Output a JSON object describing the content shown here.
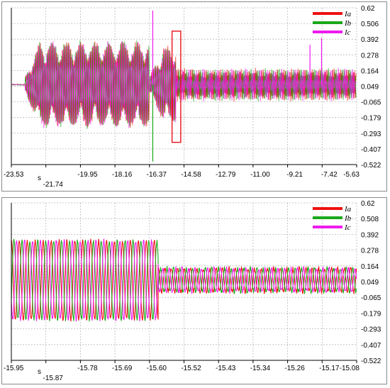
{
  "chart_data": [
    {
      "type": "line",
      "title": "",
      "xlabel": "s",
      "ylabel": "",
      "x_ticks": [
        "-23.53",
        "-21.74",
        "-19.95",
        "-18.16",
        "-16.37",
        "-14.58",
        "-12.79",
        "-11.00",
        "-9.21",
        "-7.42",
        "-5.63"
      ],
      "y_ticks": [
        "0.62",
        "0.506",
        "0.392",
        "0.278",
        "0.164",
        "0.049",
        "-0.065",
        "-0.179",
        "-0.293",
        "-0.407",
        "-0.522"
      ],
      "xlim": [
        -23.53,
        -5.63
      ],
      "ylim": [
        -0.522,
        0.62
      ],
      "grid": true,
      "legend_position": "top-right",
      "highlight_box": {
        "x": [
          -15.2,
          -14.75
        ],
        "y": [
          -0.36,
          0.45
        ],
        "color": "#e8101a"
      },
      "series": [
        {
          "name": "Ia",
          "color": "#ee1111",
          "segments": [
            {
              "x": [
                -23.53,
                -22.8
              ],
              "amplitude": 0.0,
              "center": 0.06
            },
            {
              "x": [
                -22.8,
                -16.37
              ],
              "amplitude": 0.3,
              "center": 0.06
            },
            {
              "x": [
                -16.37,
                -15.0
              ],
              "amplitude": 0.27,
              "center": 0.06
            },
            {
              "x": [
                -15.0,
                -5.63
              ],
              "amplitude": 0.11,
              "center": 0.06
            }
          ]
        },
        {
          "name": "Ib",
          "color": "#1aa81a",
          "segments": [
            {
              "x": [
                -23.53,
                -22.8
              ],
              "amplitude": 0.0,
              "center": 0.06
            },
            {
              "x": [
                -22.8,
                -16.37
              ],
              "amplitude": 0.3,
              "center": 0.06
            },
            {
              "x": [
                -16.37,
                -15.0
              ],
              "amplitude": 0.27,
              "center": 0.06
            },
            {
              "x": [
                -15.0,
                -5.63
              ],
              "amplitude": 0.11,
              "center": 0.06
            }
          ]
        },
        {
          "name": "Ic",
          "color": "#ee1aee",
          "segments": [
            {
              "x": [
                -23.53,
                -22.8
              ],
              "amplitude": 0.0,
              "center": 0.06
            },
            {
              "x": [
                -22.8,
                -16.37
              ],
              "amplitude": 0.3,
              "center": 0.06
            },
            {
              "x": [
                -16.37,
                -15.0
              ],
              "amplitude": 0.27,
              "center": 0.06
            },
            {
              "x": [
                -15.0,
                -5.63
              ],
              "amplitude": 0.11,
              "center": 0.06
            }
          ]
        }
      ],
      "spikes": [
        {
          "x": -16.2,
          "y": 0.6,
          "series": "Ic"
        },
        {
          "x": -16.2,
          "y": -0.5,
          "series": "Ib"
        },
        {
          "x": -8.05,
          "y": 0.35,
          "series": "Ic"
        },
        {
          "x": -7.45,
          "y": 0.4,
          "series": "Ic"
        }
      ]
    },
    {
      "type": "line",
      "title": "",
      "xlabel": "s",
      "ylabel": "",
      "x_ticks": [
        "-15.95",
        "-15.87",
        "-15.78",
        "-15.69",
        "-15.60",
        "-15.52",
        "-15.43",
        "-15.34",
        "-15.26",
        "-15.17",
        "-15.08"
      ],
      "y_ticks": [
        "0.62",
        "0.508",
        "0.392",
        "0.278",
        "0.164",
        "0.049",
        "-0.065",
        "-0.179",
        "-0.293",
        "-0.407",
        "-0.522"
      ],
      "xlim": [
        -15.95,
        -15.08
      ],
      "ylim": [
        -0.522,
        0.62
      ],
      "grid": true,
      "legend_position": "top-right",
      "series": [
        {
          "name": "Ia",
          "color": "#ee1111",
          "segments": [
            {
              "x": [
                -15.95,
                -15.58
              ],
              "amplitude": 0.285,
              "center": 0.06,
              "frequency_cycles_per_s": 50,
              "phase_deg": 90
            },
            {
              "x": [
                -15.58,
                -15.08
              ],
              "amplitude": 0.085,
              "center": 0.06,
              "frequency_cycles_per_s": 62,
              "phase_deg": 90
            }
          ]
        },
        {
          "name": "Ib",
          "color": "#1aa81a",
          "segments": [
            {
              "x": [
                -15.95,
                -15.58
              ],
              "amplitude": 0.285,
              "center": 0.06,
              "frequency_cycles_per_s": 50,
              "phase_deg": -30
            },
            {
              "x": [
                -15.58,
                -15.08
              ],
              "amplitude": 0.085,
              "center": 0.06,
              "frequency_cycles_per_s": 62,
              "phase_deg": -30
            }
          ]
        },
        {
          "name": "Ic",
          "color": "#ee1aee",
          "segments": [
            {
              "x": [
                -15.95,
                -15.58
              ],
              "amplitude": 0.285,
              "center": 0.06,
              "frequency_cycles_per_s": 50,
              "phase_deg": 210
            },
            {
              "x": [
                -15.58,
                -15.08
              ],
              "amplitude": 0.085,
              "center": 0.06,
              "frequency_cycles_per_s": 62,
              "phase_deg": 210
            }
          ]
        }
      ]
    }
  ]
}
